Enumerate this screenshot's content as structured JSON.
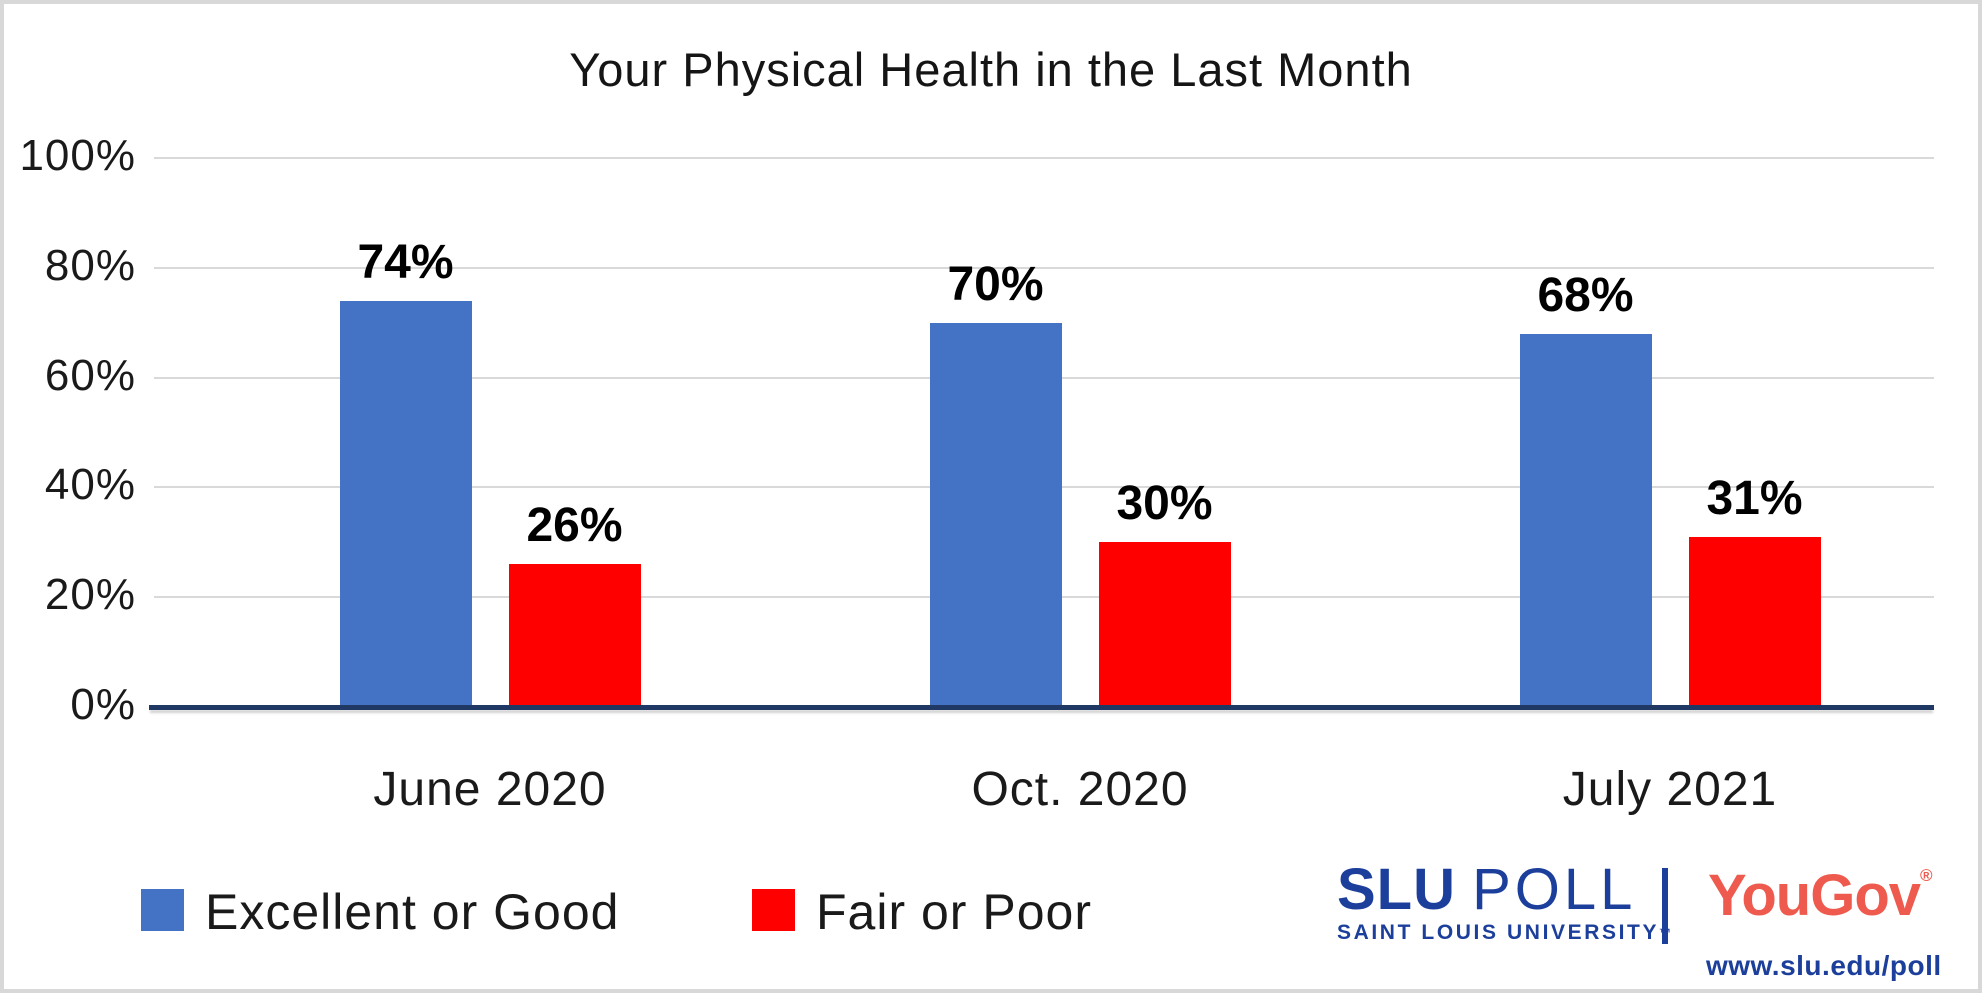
{
  "title": "Your Physical Health in the Last Month",
  "chart_data": {
    "type": "bar",
    "title": "Your Physical Health in the Last Month",
    "categories": [
      "June 2020",
      "Oct. 2020",
      "July 2021"
    ],
    "series": [
      {
        "name": "Excellent or Good",
        "color": "#4472C4",
        "values": [
          74,
          70,
          68
        ],
        "labels": [
          "74%",
          "70%",
          "68%"
        ]
      },
      {
        "name": "Fair or Poor",
        "color": "#FF0000",
        "values": [
          26,
          30,
          31
        ],
        "labels": [
          "26%",
          "30%",
          "31%"
        ]
      }
    ],
    "y_ticks": [
      {
        "label": "100%",
        "value": 100
      },
      {
        "label": "80%",
        "value": 80
      },
      {
        "label": "60%",
        "value": 60
      },
      {
        "label": "40%",
        "value": 40
      },
      {
        "label": "20%",
        "value": 20
      },
      {
        "label": "0%",
        "value": 0
      }
    ],
    "ylim": [
      0,
      100
    ],
    "grid": true,
    "legend_position": "bottom",
    "value_suffix": "%",
    "colors": {
      "gridline": "#d9d9d9",
      "axis_line": "#1f3864",
      "text": "#1a1a1a"
    }
  },
  "branding": {
    "slu_poll_primary": "SLU",
    "slu_poll_secondary": "POLL",
    "slu_subtitle": "SAINT LOUIS UNIVERSITY",
    "slu_trademark": "™",
    "yougov_name": "YouGov",
    "yougov_registered": "®",
    "website": "www.slu.edu/poll",
    "slu_blue": "#1c3f9b",
    "yougov_coral": "#ee5a4d"
  }
}
